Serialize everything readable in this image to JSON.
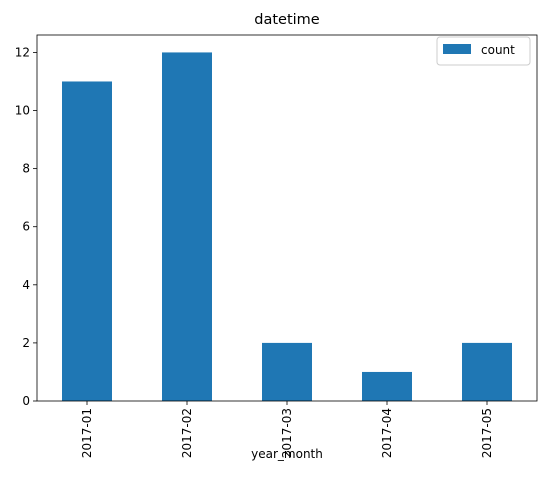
{
  "chart_data": {
    "type": "bar",
    "title": "datetime",
    "xlabel": "year_month",
    "ylabel": "",
    "categories": [
      "2017-01",
      "2017-02",
      "2017-03",
      "2017-04",
      "2017-05"
    ],
    "series": [
      {
        "name": "count",
        "values": [
          11,
          12,
          2,
          1,
          2
        ],
        "color": "#1f77b4"
      }
    ],
    "ylim": [
      0,
      12.6
    ],
    "yticks": [
      0,
      2,
      4,
      6,
      8,
      10,
      12
    ],
    "x_tick_rotation": "vertical",
    "grid": false,
    "legend": "top-right"
  }
}
